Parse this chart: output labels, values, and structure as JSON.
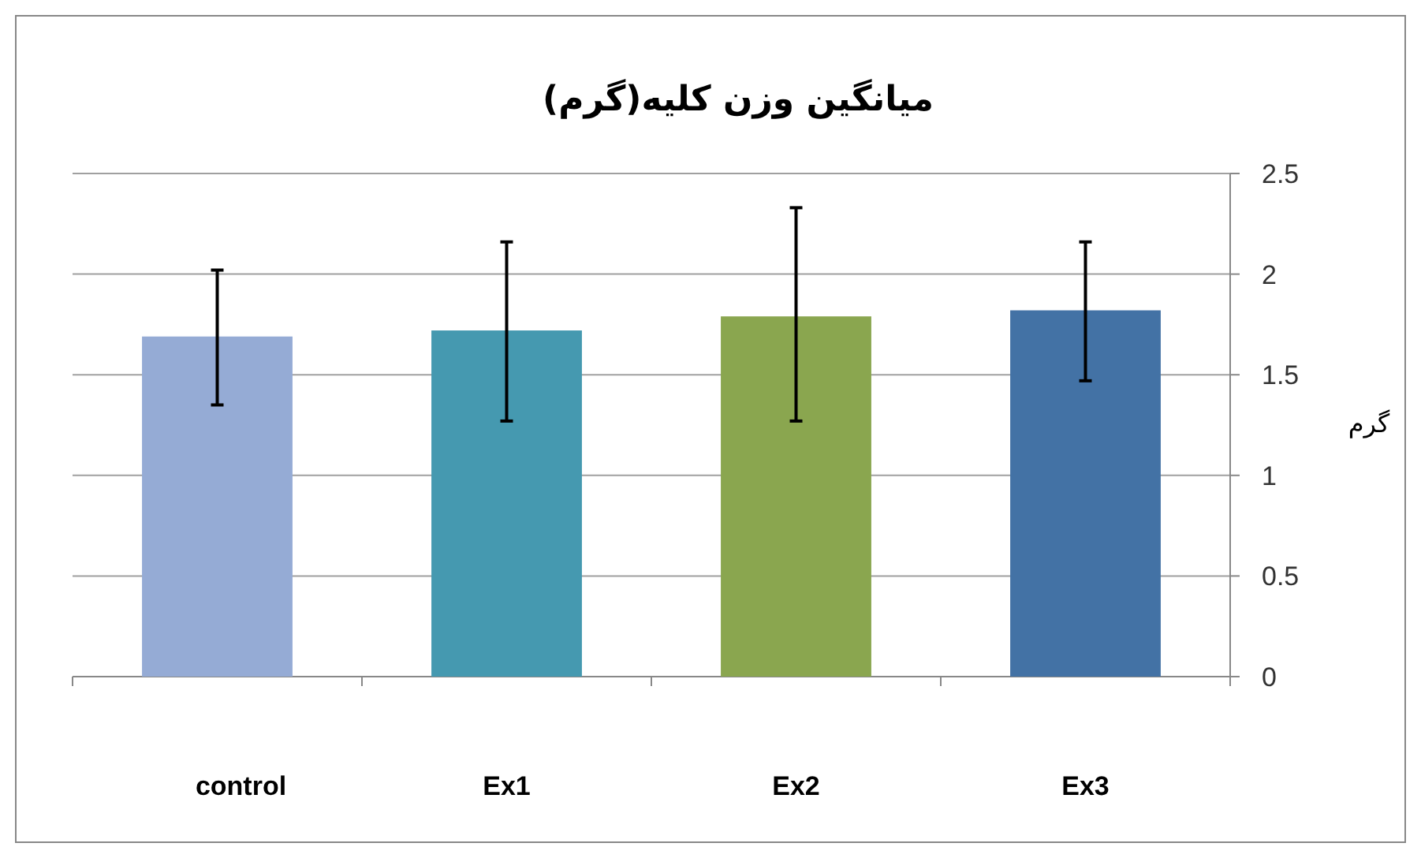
{
  "chart_data": {
    "type": "bar",
    "title": "میانگین وزن کلیه(گرم)",
    "ylabel": "گرم",
    "categories": [
      "control",
      "Ex1",
      "Ex2",
      "Ex3"
    ],
    "values": [
      1.69,
      1.72,
      1.79,
      1.82
    ],
    "colors": [
      "#95abd5",
      "#4599b0",
      "#8aa64f",
      "#4372a5"
    ],
    "errors": [
      [
        1.35,
        2.02
      ],
      [
        1.27,
        2.16
      ],
      [
        1.27,
        2.33
      ],
      [
        1.47,
        2.16
      ]
    ],
    "ylim": [
      0,
      2.5
    ],
    "yticks": [
      0,
      0.5,
      1,
      1.5,
      2,
      2.5
    ],
    "grid": "y"
  }
}
